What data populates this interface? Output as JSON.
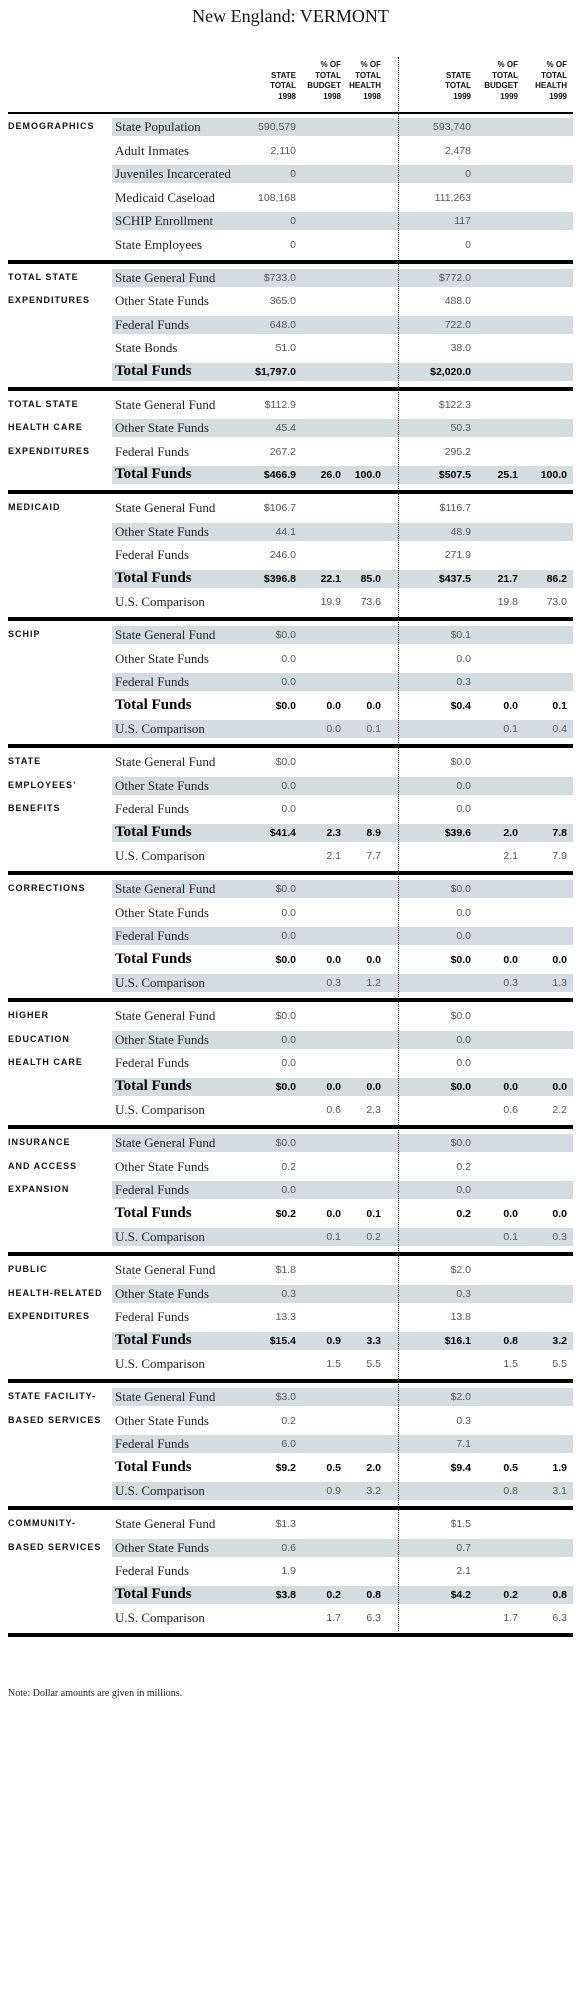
{
  "title": "New England: VERMONT",
  "columns": [
    [
      "STATE",
      "TOTAL",
      "1998"
    ],
    [
      "% OF",
      "TOTAL",
      "BUDGET",
      "1998"
    ],
    [
      "% OF",
      "TOTAL",
      "HEALTH",
      "1998"
    ],
    [
      "STATE",
      "TOTAL",
      "1999"
    ],
    [
      "% OF",
      "TOTAL",
      "BUDGET",
      "1999"
    ],
    [
      "% OF",
      "TOTAL",
      "HEALTH",
      "1999"
    ]
  ],
  "sections": [
    {
      "label": [
        "DEMOGRAPHICS"
      ],
      "rows": [
        {
          "name": "State Population",
          "cells": [
            "590,579",
            null,
            null,
            "593,740",
            null,
            null
          ]
        },
        {
          "name": "Adult Inmates",
          "cells": [
            "2,110",
            null,
            null,
            "2,478",
            null,
            null
          ]
        },
        {
          "name": "Juveniles Incarcerated",
          "cells": [
            "0",
            null,
            null,
            "0",
            null,
            null
          ]
        },
        {
          "name": "Medicaid Caseload",
          "cells": [
            "108,168",
            null,
            null,
            "111,263",
            null,
            null
          ]
        },
        {
          "name": "SCHIP Enrollment",
          "cells": [
            "0",
            null,
            null,
            "117",
            null,
            null
          ]
        },
        {
          "name": "State Employees",
          "cells": [
            "0",
            null,
            null,
            "0",
            null,
            null
          ]
        }
      ]
    },
    {
      "label": [
        "TOTAL STATE",
        "EXPENDITURES"
      ],
      "rows": [
        {
          "name": "State General Fund",
          "cells": [
            "$733.0",
            null,
            null,
            "$772.0",
            null,
            null
          ]
        },
        {
          "name": "Other State Funds",
          "cells": [
            "365.0",
            null,
            null,
            "488.0",
            null,
            null
          ]
        },
        {
          "name": "Federal Funds",
          "cells": [
            "648.0",
            null,
            null,
            "722.0",
            null,
            null
          ]
        },
        {
          "name": "State Bonds",
          "cells": [
            "51.0",
            null,
            null,
            "38.0",
            null,
            null
          ]
        },
        {
          "name": "Total Funds",
          "total": true,
          "cells": [
            "$1,797.0",
            null,
            null,
            "$2,020.0",
            null,
            null
          ]
        }
      ]
    },
    {
      "label": [
        "TOTAL STATE",
        "HEALTH CARE",
        "EXPENDITURES"
      ],
      "rows": [
        {
          "name": "State General Fund",
          "cells": [
            "$112.9",
            null,
            null,
            "$122.3",
            null,
            null
          ]
        },
        {
          "name": "Other State Funds",
          "cells": [
            "45.4",
            null,
            null,
            "50.3",
            null,
            null
          ]
        },
        {
          "name": "Federal Funds",
          "cells": [
            "267.2",
            null,
            null,
            "295.2",
            null,
            null
          ]
        },
        {
          "name": "Total Funds",
          "total": true,
          "cells": [
            "$466.9",
            "26.0",
            "100.0",
            "$507.5",
            "25.1",
            "100.0"
          ]
        }
      ]
    },
    {
      "label": [
        "MEDICAID"
      ],
      "rows": [
        {
          "name": "State General Fund",
          "cells": [
            "$106.7",
            null,
            null,
            "$116.7",
            null,
            null
          ]
        },
        {
          "name": "Other State Funds",
          "cells": [
            "44.1",
            null,
            null,
            "48.9",
            null,
            null
          ]
        },
        {
          "name": "Federal Funds",
          "cells": [
            "246.0",
            null,
            null,
            "271.9",
            null,
            null
          ]
        },
        {
          "name": "Total Funds",
          "total": true,
          "cells": [
            "$396.8",
            "22.1",
            "85.0",
            "$437.5",
            "21.7",
            "86.2"
          ]
        },
        {
          "name": "U.S. Comparison",
          "cells": [
            null,
            "19.9",
            "73.6",
            null,
            "19.8",
            "73.0"
          ]
        }
      ]
    },
    {
      "label": [
        "SCHIP"
      ],
      "rows": [
        {
          "name": "State General Fund",
          "cells": [
            "$0.0",
            null,
            null,
            "$0.1",
            null,
            null
          ]
        },
        {
          "name": "Other State Funds",
          "cells": [
            "0.0",
            null,
            null,
            "0.0",
            null,
            null
          ]
        },
        {
          "name": "Federal Funds",
          "cells": [
            "0.0",
            null,
            null,
            "0.3",
            null,
            null
          ]
        },
        {
          "name": "Total Funds",
          "total": true,
          "cells": [
            "$0.0",
            "0.0",
            "0.0",
            "$0.4",
            "0.0",
            "0.1"
          ]
        },
        {
          "name": "U.S. Comparison",
          "cells": [
            null,
            "0.0",
            "0.1",
            null,
            "0.1",
            "0.4"
          ]
        }
      ]
    },
    {
      "label": [
        "STATE",
        "EMPLOYEES’",
        "BENEFITS"
      ],
      "rows": [
        {
          "name": "State General Fund",
          "cells": [
            "$0.0",
            null,
            null,
            "$0.0",
            null,
            null
          ]
        },
        {
          "name": "Other State Funds",
          "cells": [
            "0.0",
            null,
            null,
            "0.0",
            null,
            null
          ]
        },
        {
          "name": "Federal Funds",
          "cells": [
            "0.0",
            null,
            null,
            "0.0",
            null,
            null
          ]
        },
        {
          "name": "Total Funds",
          "total": true,
          "cells": [
            "$41.4",
            "2.3",
            "8.9",
            "$39.6",
            "2.0",
            "7.8"
          ]
        },
        {
          "name": "U.S. Comparison",
          "cells": [
            null,
            "2.1",
            "7.7",
            null,
            "2.1",
            "7.9"
          ]
        }
      ]
    },
    {
      "label": [
        "CORRECTIONS"
      ],
      "rows": [
        {
          "name": "State General Fund",
          "cells": [
            "$0.0",
            null,
            null,
            "$0.0",
            null,
            null
          ]
        },
        {
          "name": "Other State Funds",
          "cells": [
            "0.0",
            null,
            null,
            "0.0",
            null,
            null
          ]
        },
        {
          "name": "Federal Funds",
          "cells": [
            "0.0",
            null,
            null,
            "0.0",
            null,
            null
          ]
        },
        {
          "name": "Total Funds",
          "total": true,
          "cells": [
            "$0.0",
            "0.0",
            "0.0",
            "$0.0",
            "0.0",
            "0.0"
          ]
        },
        {
          "name": "U.S. Comparison",
          "cells": [
            null,
            "0.3",
            "1.2",
            null,
            "0.3",
            "1.3"
          ]
        }
      ]
    },
    {
      "label": [
        "HIGHER",
        "EDUCATION",
        "HEALTH CARE"
      ],
      "rows": [
        {
          "name": "State General Fund",
          "cells": [
            "$0.0",
            null,
            null,
            "$0.0",
            null,
            null
          ]
        },
        {
          "name": "Other State Funds",
          "cells": [
            "0.0",
            null,
            null,
            "0.0",
            null,
            null
          ]
        },
        {
          "name": "Federal Funds",
          "cells": [
            "0.0",
            null,
            null,
            "0.0",
            null,
            null
          ]
        },
        {
          "name": "Total Funds",
          "total": true,
          "cells": [
            "$0.0",
            "0.0",
            "0.0",
            "$0.0",
            "0.0",
            "0.0"
          ]
        },
        {
          "name": "U.S. Comparison",
          "cells": [
            null,
            "0.6",
            "2.3",
            null,
            "0.6",
            "2.2"
          ]
        }
      ]
    },
    {
      "label": [
        "INSURANCE",
        "AND ACCESS",
        "EXPANSION"
      ],
      "rows": [
        {
          "name": "State General Fund",
          "cells": [
            "$0.0",
            null,
            null,
            "$0.0",
            null,
            null
          ]
        },
        {
          "name": "Other State Funds",
          "cells": [
            "0.2",
            null,
            null,
            "0.2",
            null,
            null
          ]
        },
        {
          "name": "Federal Funds",
          "cells": [
            "0.0",
            null,
            null,
            "0.0",
            null,
            null
          ]
        },
        {
          "name": "Total Funds",
          "total": true,
          "cells": [
            "$0.2",
            "0.0",
            "0.1",
            "0.2",
            "0.0",
            "0.0"
          ]
        },
        {
          "name": "U.S. Comparison",
          "cells": [
            null,
            "0.1",
            "0.2",
            null,
            "0.1",
            "0.3"
          ]
        }
      ]
    },
    {
      "label": [
        "PUBLIC",
        "HEALTH-RELATED",
        "EXPENDITURES"
      ],
      "rows": [
        {
          "name": "State General Fund",
          "cells": [
            "$1.8",
            null,
            null,
            "$2.0",
            null,
            null
          ]
        },
        {
          "name": "Other State Funds",
          "cells": [
            "0.3",
            null,
            null,
            "0.3",
            null,
            null
          ]
        },
        {
          "name": "Federal Funds",
          "cells": [
            "13.3",
            null,
            null,
            "13.8",
            null,
            null
          ]
        },
        {
          "name": "Total Funds",
          "total": true,
          "cells": [
            "$15.4",
            "0.9",
            "3.3",
            "$16.1",
            "0.8",
            "3.2"
          ]
        },
        {
          "name": "U.S. Comparison",
          "cells": [
            null,
            "1.5",
            "5.5",
            null,
            "1.5",
            "5.5"
          ]
        }
      ]
    },
    {
      "label": [
        "STATE FACILITY-",
        "BASED SERVICES"
      ],
      "rows": [
        {
          "name": "State General Fund",
          "cells": [
            "$3.0",
            null,
            null,
            "$2.0",
            null,
            null
          ]
        },
        {
          "name": "Other State Funds",
          "cells": [
            "0.2",
            null,
            null,
            "0.3",
            null,
            null
          ]
        },
        {
          "name": "Federal Funds",
          "cells": [
            "6.0",
            null,
            null,
            "7.1",
            null,
            null
          ]
        },
        {
          "name": "Total Funds",
          "total": true,
          "cells": [
            "$9.2",
            "0.5",
            "2.0",
            "$9.4",
            "0.5",
            "1.9"
          ]
        },
        {
          "name": "U.S. Comparison",
          "cells": [
            null,
            "0.9",
            "3.2",
            null,
            "0.8",
            "3.1"
          ]
        }
      ]
    },
    {
      "label": [
        "COMMUNITY-",
        "BASED SERVICES"
      ],
      "rows": [
        {
          "name": "State General Fund",
          "cells": [
            "$1.3",
            null,
            null,
            "$1.5",
            null,
            null
          ]
        },
        {
          "name": "Other State Funds",
          "cells": [
            "0.6",
            null,
            null,
            "0.7",
            null,
            null
          ]
        },
        {
          "name": "Federal Funds",
          "cells": [
            "1.9",
            null,
            null,
            "2.1",
            null,
            null
          ]
        },
        {
          "name": "Total Funds",
          "total": true,
          "cells": [
            "$3.8",
            "0.2",
            "0.8",
            "$4.2",
            "0.2",
            "0.8"
          ]
        },
        {
          "name": "U.S. Comparison",
          "cells": [
            null,
            "1.7",
            "6.3",
            null,
            "1.7",
            "6.3"
          ]
        }
      ]
    }
  ],
  "note": "Note: Dollar amounts are given in millions."
}
